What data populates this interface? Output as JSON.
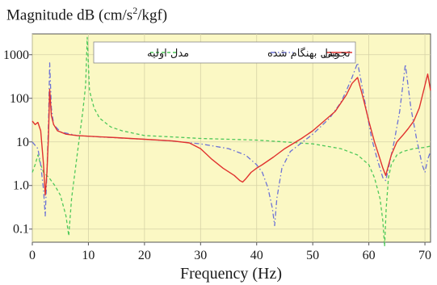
{
  "chart_data": {
    "type": "line",
    "title_main": "Magnitude dB (cm/s",
    "title_sup": "2",
    "title_rest": "/kgf)",
    "xlabel": "Frequency (Hz)",
    "ylabel": "",
    "xlim": [
      0,
      71
    ],
    "ylim": [
      0.05,
      3000
    ],
    "y_scale": "log",
    "grid": true,
    "legend_position": "top",
    "background": "#fbf8c4",
    "x_ticks": [
      "0",
      "10",
      "20",
      "30",
      "40",
      "50",
      "60",
      "70"
    ],
    "x_tick_values": [
      0,
      10,
      20,
      30,
      40,
      50,
      60,
      70
    ],
    "y_ticks": [
      "1000",
      "100",
      "10",
      "1.0",
      "0.1"
    ],
    "y_tick_values": [
      1000,
      100,
      10,
      1,
      0.1
    ],
    "series": [
      {
        "name": "تجربی",
        "color": "#e0322f",
        "style": "solid",
        "x": [
          0,
          0.5,
          1.0,
          1.5,
          2.0,
          2.3,
          2.6,
          2.9,
          3.1,
          3.4,
          3.8,
          4.5,
          6,
          8,
          10,
          15,
          20,
          25,
          28,
          30,
          32,
          34,
          36,
          37,
          37.5,
          38,
          39,
          40,
          41,
          43,
          45,
          48,
          50,
          52,
          54,
          56,
          57,
          58,
          59,
          60,
          61,
          62,
          62.5,
          63,
          64,
          65,
          66,
          67,
          68,
          69,
          70,
          70.5,
          71
        ],
        "y": [
          30,
          25,
          28,
          18,
          3,
          0.6,
          2,
          15,
          160,
          40,
          25,
          18,
          15,
          14,
          13.5,
          12.5,
          11.5,
          10.5,
          9.5,
          7,
          4,
          2.5,
          1.7,
          1.3,
          1.2,
          1.4,
          2.0,
          2.5,
          3.0,
          4.5,
          7,
          12,
          18,
          30,
          50,
          120,
          220,
          300,
          100,
          30,
          10,
          4,
          2.5,
          1.7,
          5,
          10,
          14,
          20,
          30,
          60,
          200,
          360,
          150
        ]
      },
      {
        "name": "مدل بهنگام شده",
        "color": "#6c72d6",
        "style": "dashdot",
        "x": [
          0,
          1.0,
          1.5,
          2.0,
          2.3,
          2.6,
          2.9,
          3.1,
          3.4,
          3.8,
          5,
          8,
          12,
          20,
          25,
          30,
          35,
          38,
          40,
          41,
          42,
          42.8,
          43.2,
          43.6,
          44.5,
          46,
          50,
          53,
          55,
          56,
          57,
          58,
          58.5,
          59.5,
          60.5,
          61.5,
          62.5,
          63,
          63.5,
          64.5,
          65.5,
          66.5,
          67.5,
          68.5,
          69.5,
          70,
          70.5,
          71
        ],
        "y": [
          10,
          7,
          3,
          0.8,
          0.2,
          2,
          30,
          650,
          60,
          25,
          17,
          14,
          13,
          11.5,
          10.5,
          9,
          7,
          5,
          3,
          2,
          0.9,
          0.3,
          0.12,
          0.5,
          2.5,
          6,
          15,
          35,
          80,
          150,
          300,
          650,
          300,
          60,
          12,
          4,
          1.5,
          1.3,
          2.5,
          10,
          50,
          600,
          60,
          12,
          3,
          2,
          4,
          6
        ]
      },
      {
        "name": "مدل اولیه",
        "color": "#4fc85a",
        "style": "dashed",
        "x": [
          0,
          0.5,
          1.0,
          1.5,
          2.0,
          3,
          4,
          5,
          6,
          6.5,
          7,
          8,
          9,
          9.5,
          9.8,
          10.2,
          11,
          12,
          14,
          16,
          20,
          25,
          30,
          35,
          40,
          45,
          50,
          55,
          58,
          60,
          61,
          62,
          62.5,
          62.8,
          63.1,
          63.5,
          64,
          65,
          66,
          68,
          70,
          71
        ],
        "y": [
          2,
          3,
          5,
          3,
          2,
          1.5,
          1.0,
          0.6,
          0.2,
          0.07,
          0.5,
          5,
          50,
          200,
          2500,
          150,
          60,
          35,
          22,
          18,
          14,
          13,
          12,
          11.5,
          11,
          10,
          9,
          7,
          5,
          3,
          1.5,
          0.5,
          0.15,
          0.04,
          0.3,
          1.5,
          3,
          5,
          6,
          7,
          7.5,
          8
        ]
      }
    ]
  }
}
